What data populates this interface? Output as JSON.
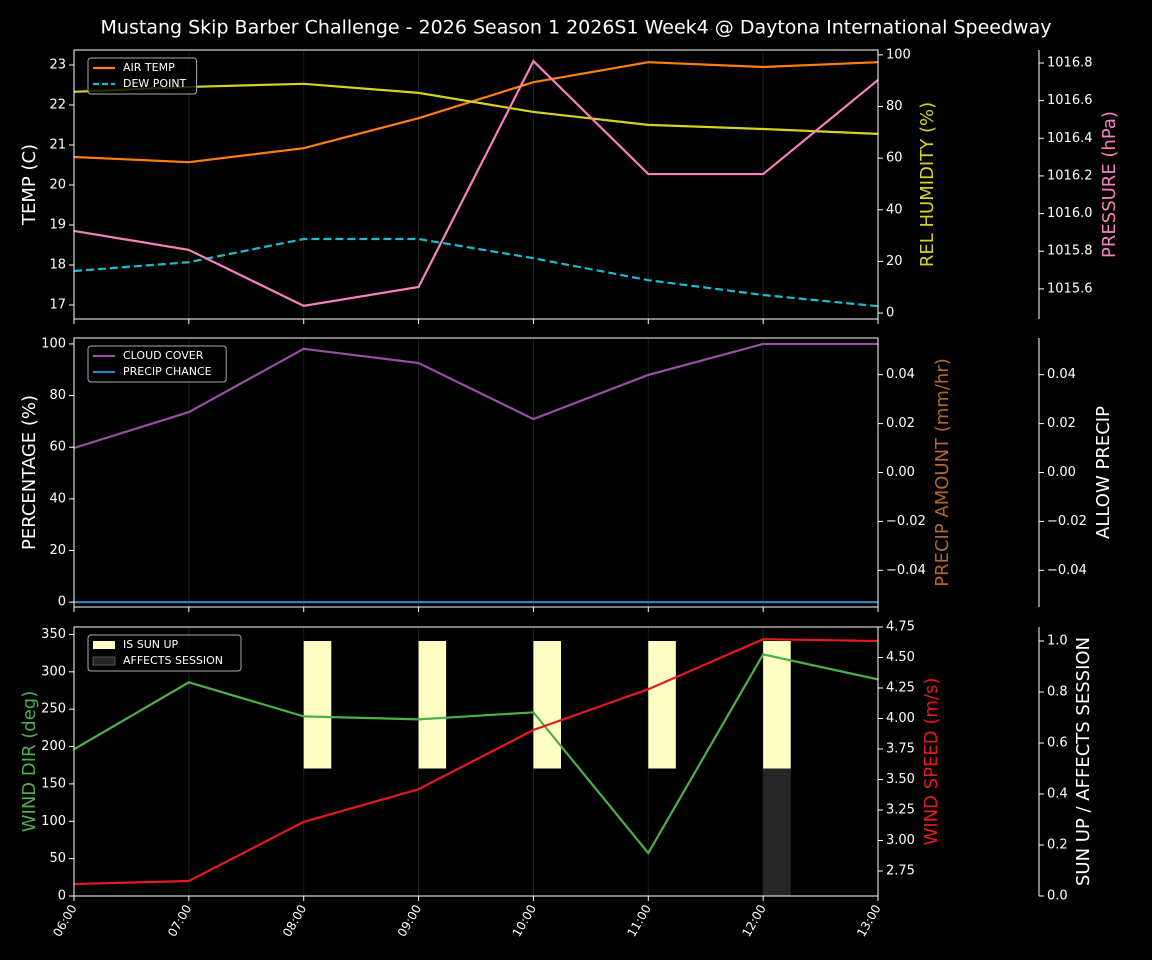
{
  "chart_data": [
    {
      "type": "line",
      "title": "Mustang Skip Barber Challenge - 2026 Season 1 2026S1 Week4 @ Daytona International Speedway",
      "ylabel": "TEMP (C)",
      "y2label": "REL HUMIDITY (%)",
      "y3label": "PRESSURE (hPa)",
      "axis_colors": {
        "y": "#ffffff",
        "y2": "#d4d41f",
        "y3": "#f781bf"
      },
      "ylim": [
        16.65,
        23.375
      ],
      "yticks": [
        17,
        18,
        19,
        20,
        21,
        22,
        23
      ],
      "y2lim": [
        -2.3,
        101.9
      ],
      "y2ticks": [
        0,
        20,
        40,
        60,
        80,
        100
      ],
      "y3lim": [
        1015.44,
        1016.869
      ],
      "y3ticks": [
        1015.6,
        1015.8,
        {
          "value": 1016,
          "label": "1016.0"
        },
        1016.2,
        1016.4,
        1016.6,
        1016.8
      ],
      "legend": "upper left",
      "xgrid": true,
      "series": [
        {
          "name": "AIR TEMP",
          "color": "#ff7f0e",
          "values": [
            20.7,
            20.57,
            20.92,
            21.67,
            22.57,
            23.07,
            22.95,
            23.07
          ]
        },
        {
          "name": "DEW POINT",
          "color": "#17becf",
          "dash": true,
          "values": [
            17.85,
            18.07,
            18.65,
            18.65,
            18.17,
            17.62,
            17.25,
            16.97
          ]
        },
        {
          "color": "#d4d41f",
          "axis": "y2",
          "values": [
            85.7,
            87.6,
            88.8,
            85.3,
            77.9,
            72.9,
            71.3,
            69.4
          ]
        },
        {
          "color": "#f781bf",
          "axis": "y3",
          "values": [
            1015.908,
            1015.807,
            1015.51,
            1015.61,
            1016.81,
            1016.21,
            1016.21,
            1016.71
          ]
        }
      ]
    },
    {
      "type": "line",
      "ylabel": "PERCENTAGE (%)",
      "y2label": "PRECIP AMOUNT (mm/hr)",
      "y3label": "ALLOW PRECIP",
      "axis_colors": {
        "y": "#ffffff",
        "y2": "#b5652d",
        "y3": "#ffffff"
      },
      "ylim": [
        -1.9,
        102.3
      ],
      "yticks": [
        0,
        20,
        40,
        60,
        80,
        100
      ],
      "y2lim": [
        -0.055,
        0.055
      ],
      "y2ticks": [
        {
          "value": -0.04,
          "label": "−0.04"
        },
        {
          "value": -0.02,
          "label": "−0.02"
        },
        {
          "value": 0,
          "label": "0.00"
        },
        0.02,
        0.04
      ],
      "y3lim": [
        -0.055,
        0.055
      ],
      "y3ticks": [
        {
          "value": -0.04,
          "label": "−0.04"
        },
        {
          "value": -0.02,
          "label": "−0.02"
        },
        {
          "value": 0,
          "label": "0.00"
        },
        0.02,
        0.04
      ],
      "legend": "upper left",
      "xgrid": true,
      "series": [
        {
          "name": "CLOUD COVER",
          "color": "#984ea3",
          "values": [
            59.7,
            73.6,
            98.1,
            92.6,
            70.9,
            88,
            100,
            100
          ]
        },
        {
          "name": "PRECIP CHANCE",
          "color": "#377eb8",
          "values": [
            0,
            0,
            0,
            0,
            0,
            0,
            0,
            0
          ]
        }
      ]
    },
    {
      "type": "line",
      "categories": [
        "06:00",
        "07:00",
        "08:00",
        "09:00",
        "10:00",
        "11:00",
        "12:00",
        "13:00"
      ],
      "ylabel": "WIND DIR (deg)",
      "y2label": "WIND SPEED (m/s)",
      "y3label": "SUN UP / AFFECTS SESSION",
      "axis_colors": {
        "y": "#4daf4a",
        "y2": "#e41a1c",
        "y3": "#ffffff"
      },
      "ylim": [
        0,
        360
      ],
      "yticks": [
        0,
        50,
        100,
        150,
        200,
        250,
        300,
        350
      ],
      "y2lim": [
        2.545,
        4.75
      ],
      "y2ticks": [
        2.75,
        {
          "value": 3,
          "label": "3.00"
        },
        3.25,
        {
          "value": 3.5,
          "label": "3.50"
        },
        3.75,
        {
          "value": 4,
          "label": "4.00"
        },
        4.25,
        {
          "value": 4.5,
          "label": "4.50"
        },
        4.75
      ],
      "y3lim": [
        0,
        1.055
      ],
      "y3ticks": [
        {
          "value": 0,
          "label": "0.0"
        },
        0.2,
        0.4,
        0.6,
        0.8,
        {
          "value": 1,
          "label": "1.0"
        }
      ],
      "legend": "upper left",
      "xgrid": true,
      "series": [
        {
          "name": "IS SUN UP",
          "type": "bar",
          "part": "upper",
          "color": "#ffffc4",
          "axis": "y3",
          "values": [
            0,
            0,
            1,
            1,
            1,
            1,
            1,
            0
          ]
        },
        {
          "name": "AFFECTS SESSION",
          "type": "bar",
          "part": "lower",
          "color": "#262626",
          "axis": "y3",
          "values": [
            0,
            0,
            0,
            0,
            0,
            0,
            1,
            0
          ]
        },
        {
          "color": "#4daf4a",
          "values": [
            196.4,
            285.9,
            240.4,
            236.4,
            245.8,
            57.4,
            323.3,
            289.9
          ]
        },
        {
          "color": "#e41a1c",
          "axis": "y2",
          "values": [
            2.643,
            2.668,
            3.152,
            3.42,
            3.906,
            4.24,
            4.65,
            4.635
          ]
        }
      ]
    }
  ]
}
